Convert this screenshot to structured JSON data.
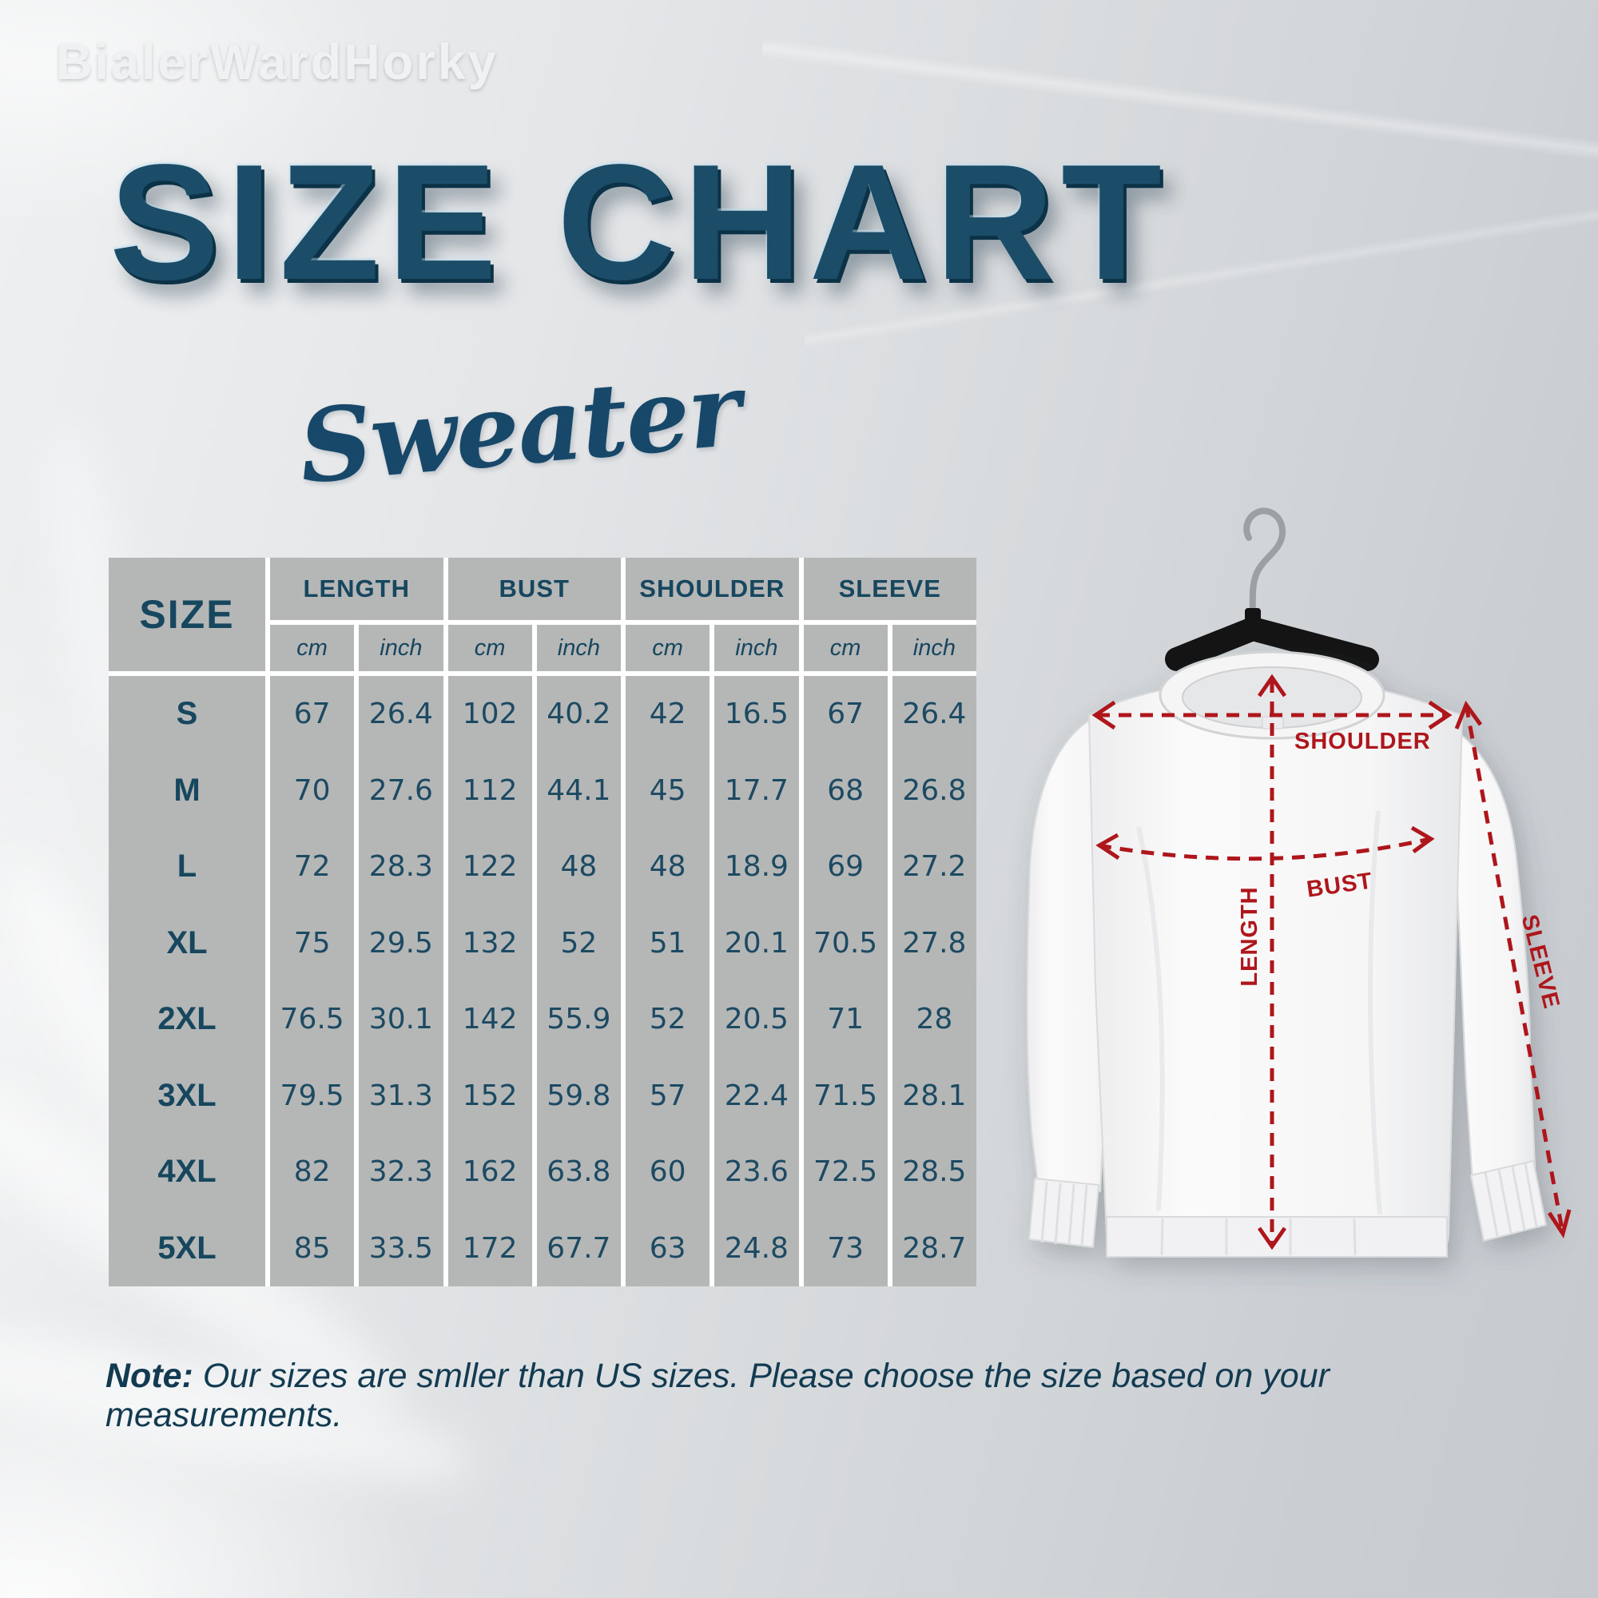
{
  "brand": "BialerWardHorky",
  "header": {
    "title": "SIZE CHART",
    "subtitle": "Sweater"
  },
  "table": {
    "size_header": "SIZE",
    "groups": [
      "LENGTH",
      "BUST",
      "SHOULDER",
      "SLEEVE"
    ],
    "units": [
      "cm",
      "inch"
    ],
    "rows": [
      {
        "size": "S",
        "values": [
          "67",
          "26.4",
          "102",
          "40.2",
          "42",
          "16.5",
          "67",
          "26.4"
        ]
      },
      {
        "size": "M",
        "values": [
          "70",
          "27.6",
          "112",
          "44.1",
          "45",
          "17.7",
          "68",
          "26.8"
        ]
      },
      {
        "size": "L",
        "values": [
          "72",
          "28.3",
          "122",
          "48",
          "48",
          "18.9",
          "69",
          "27.2"
        ]
      },
      {
        "size": "XL",
        "values": [
          "75",
          "29.5",
          "132",
          "52",
          "51",
          "20.1",
          "70.5",
          "27.8"
        ]
      },
      {
        "size": "2XL",
        "values": [
          "76.5",
          "30.1",
          "142",
          "55.9",
          "52",
          "20.5",
          "71",
          "28"
        ]
      },
      {
        "size": "3XL",
        "values": [
          "79.5",
          "31.3",
          "152",
          "59.8",
          "57",
          "22.4",
          "71.5",
          "28.1"
        ]
      },
      {
        "size": "4XL",
        "values": [
          "82",
          "32.3",
          "162",
          "63.8",
          "60",
          "23.6",
          "72.5",
          "28.5"
        ]
      },
      {
        "size": "5XL",
        "values": [
          "85",
          "33.5",
          "172",
          "67.7",
          "63",
          "24.8",
          "73",
          "28.7"
        ]
      }
    ]
  },
  "diagram": {
    "shoulder": "SHOULDER",
    "bust": "BUST",
    "length": "LENGTH",
    "sleeve": "SLEEVE"
  },
  "note": {
    "label": "Note:",
    "text": " Our sizes are smller than US sizes. Please choose the size based on your measurements."
  },
  "colors": {
    "teal": "#1b4d69",
    "red": "#ae161c",
    "cell_gray": "#b5b6b6"
  }
}
